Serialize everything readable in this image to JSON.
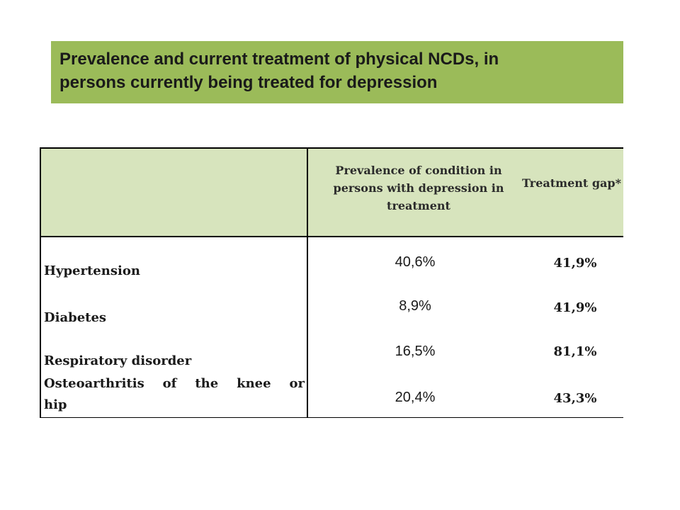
{
  "title": "Prevalence and current treatment of physical NCDs, in\npersons currently being treated for depression",
  "table": {
    "header_prevalence": "Prevalence of condition in persons with depression in treatment",
    "header_gap": "Treatment gap*",
    "rows": [
      {
        "label": "Hypertension",
        "prevalence": "40,6%",
        "gap": "41,9%"
      },
      {
        "label": "Diabetes",
        "prevalence": "8,9%",
        "gap": "41,9%"
      },
      {
        "label": "Respiratory disorder",
        "prevalence": "16,5%",
        "gap": "81,1%"
      },
      {
        "label": "Osteoarthritis of the knee or",
        "label_cont": "hip",
        "prevalence": "20,4%",
        "gap": "43,3%"
      }
    ]
  },
  "colors": {
    "title_background": "#9bbb59",
    "header_background": "#d7e4bd"
  }
}
